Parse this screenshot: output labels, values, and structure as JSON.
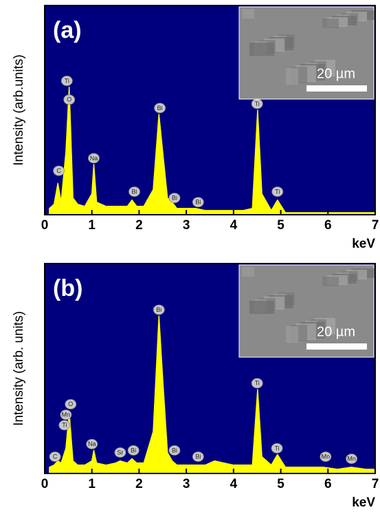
{
  "chart_data": [
    {
      "type": "area",
      "panel_label": "(a)",
      "y_label": "Intensity (arb.units)",
      "x_label": "keV",
      "background": "#00007f",
      "color": "#ffff00",
      "inset_scale": "20 µm",
      "xlim": [
        0,
        7
      ],
      "xticks": [
        0,
        1,
        2,
        3,
        4,
        5,
        6,
        7
      ],
      "ylim": [
        0,
        100
      ],
      "x": [
        0.1,
        0.2,
        0.28,
        0.35,
        0.45,
        0.52,
        0.6,
        0.7,
        0.85,
        1.0,
        1.04,
        1.1,
        1.3,
        1.5,
        1.6,
        1.75,
        1.85,
        1.95,
        2.1,
        2.3,
        2.42,
        2.5,
        2.6,
        2.7,
        2.8,
        3.0,
        3.2,
        3.4,
        3.6,
        3.8,
        4.0,
        4.2,
        4.4,
        4.51,
        4.6,
        4.8,
        4.93,
        5.1,
        5.4,
        5.7,
        5.9,
        6.2,
        6.49,
        6.8,
        7.0
      ],
      "values": [
        3,
        5,
        15,
        6,
        30,
        61,
        8,
        5,
        4,
        10,
        24,
        6,
        4,
        4,
        4,
        4,
        7,
        4,
        4,
        12,
        48,
        30,
        8,
        6,
        3,
        3,
        3,
        2,
        2,
        2,
        2,
        2,
        3,
        50,
        10,
        2,
        7,
        1,
        1,
        1,
        1,
        1,
        1,
        1,
        1
      ],
      "annotations": [
        {
          "text": "Ti",
          "x": 0.47,
          "y": 64
        },
        {
          "text": "O",
          "x": 0.52,
          "y": 55
        },
        {
          "text": "C",
          "x": 0.3,
          "y": 21
        },
        {
          "text": "Na",
          "x": 1.04,
          "y": 27
        },
        {
          "text": "Bi",
          "x": 1.9,
          "y": 11
        },
        {
          "text": "Bi",
          "x": 2.44,
          "y": 51
        },
        {
          "text": "Bi",
          "x": 2.75,
          "y": 8
        },
        {
          "text": "Bi",
          "x": 3.25,
          "y": 6
        },
        {
          "text": "Ti",
          "x": 4.5,
          "y": 53
        },
        {
          "text": "Ti",
          "x": 4.93,
          "y": 11
        }
      ]
    },
    {
      "type": "area",
      "panel_label": "(b)",
      "y_label": "Intensity (arb. units)",
      "x_label": "keV",
      "background": "#00007f",
      "color": "#ffff00",
      "inset_scale": "20 µm",
      "xlim": [
        0,
        7
      ],
      "xticks": [
        0,
        1,
        2,
        3,
        4,
        5,
        6,
        7
      ],
      "ylim": [
        0,
        100
      ],
      "x": [
        0.1,
        0.2,
        0.28,
        0.35,
        0.45,
        0.52,
        0.6,
        0.7,
        0.85,
        1.0,
        1.04,
        1.1,
        1.3,
        1.5,
        1.6,
        1.75,
        1.85,
        1.95,
        2.1,
        2.3,
        2.42,
        2.5,
        2.6,
        2.7,
        2.8,
        3.0,
        3.2,
        3.4,
        3.6,
        3.8,
        4.0,
        4.2,
        4.4,
        4.51,
        4.6,
        4.8,
        4.93,
        5.1,
        5.4,
        5.7,
        5.9,
        6.2,
        6.49,
        6.8,
        7.0
      ],
      "values": [
        3,
        4,
        6,
        5,
        12,
        29,
        6,
        4,
        4,
        6,
        11,
        5,
        4,
        5,
        6,
        5,
        7,
        5,
        5,
        20,
        75,
        45,
        10,
        6,
        4,
        4,
        4,
        4,
        6,
        5,
        4,
        4,
        4,
        40,
        8,
        4,
        9,
        3,
        3,
        3,
        3,
        2,
        3,
        2,
        2
      ],
      "annotations": [
        {
          "text": "C",
          "x": 0.22,
          "y": 8
        },
        {
          "text": "Ti",
          "x": 0.42,
          "y": 23
        },
        {
          "text": "Mn",
          "x": 0.45,
          "y": 28
        },
        {
          "text": "O",
          "x": 0.55,
          "y": 33
        },
        {
          "text": "Na",
          "x": 1.0,
          "y": 14
        },
        {
          "text": "Sr",
          "x": 1.6,
          "y": 10
        },
        {
          "text": "Bi",
          "x": 1.88,
          "y": 11
        },
        {
          "text": "Bi",
          "x": 2.42,
          "y": 78
        },
        {
          "text": "Bi",
          "x": 2.75,
          "y": 11
        },
        {
          "text": "Bi",
          "x": 3.25,
          "y": 8
        },
        {
          "text": "Ti",
          "x": 4.5,
          "y": 43
        },
        {
          "text": "Ti",
          "x": 4.92,
          "y": 12
        },
        {
          "text": "Mn",
          "x": 5.95,
          "y": 8
        },
        {
          "text": "Mn",
          "x": 6.5,
          "y": 7
        }
      ]
    }
  ]
}
